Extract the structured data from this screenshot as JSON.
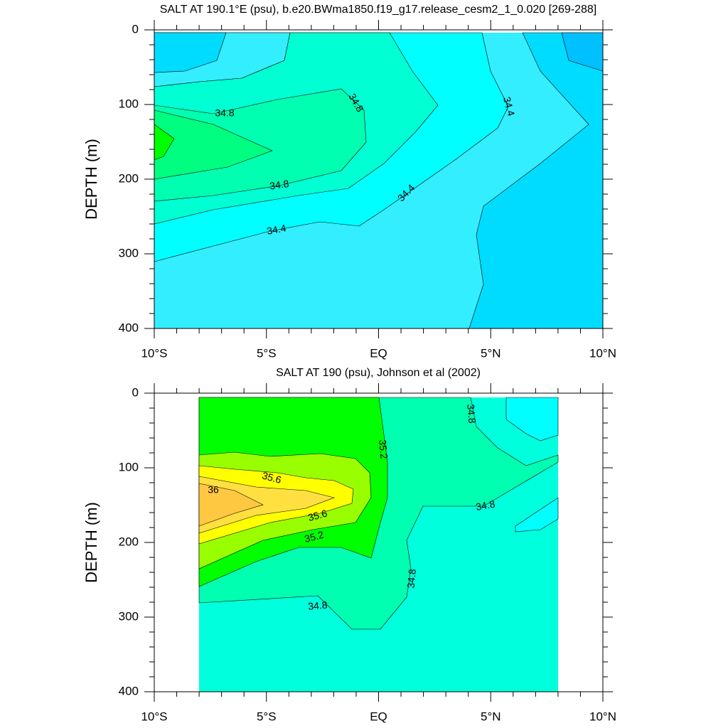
{
  "chart_data": [
    {
      "type": "contour",
      "title": "SALT AT 190.1°E (psu), b.e20.BWma1850.f19_g17.release_cesm2_1_0.020 [269-288]",
      "ylabel": "DEPTH (m)",
      "xlim": [
        -10,
        10
      ],
      "xticks": [
        {
          "value": -10,
          "label": "10°S"
        },
        {
          "value": -5,
          "label": "5°S"
        },
        {
          "value": 0,
          "label": "EQ"
        },
        {
          "value": 5,
          "label": "5°N"
        },
        {
          "value": 10,
          "label": "10°N"
        }
      ],
      "xminorticks": [
        -9,
        -8,
        -7,
        -6,
        -4,
        -3,
        -2,
        -1,
        1,
        2,
        3,
        4,
        6,
        7,
        8,
        9
      ],
      "ylim": [
        400,
        0
      ],
      "yticks": [
        0,
        100,
        200,
        300,
        400
      ],
      "yminorticks": [
        20,
        40,
        60,
        80,
        120,
        140,
        160,
        180,
        220,
        240,
        260,
        280,
        320,
        340,
        360,
        380
      ],
      "contour_labels": [
        34.8,
        34.8,
        34.4,
        34.8,
        34.4,
        34.4
      ]
    },
    {
      "type": "contour",
      "title": "SALT AT 190 (psu), Johnson et al (2002)",
      "ylabel": "DEPTH (m)",
      "xlim": [
        -10,
        10
      ],
      "xticks": [
        {
          "value": -10,
          "label": "10°S"
        },
        {
          "value": -5,
          "label": "5°S"
        },
        {
          "value": 0,
          "label": "EQ"
        },
        {
          "value": 5,
          "label": "5°N"
        },
        {
          "value": 10,
          "label": "10°N"
        }
      ],
      "xminorticks": [
        -9,
        -8,
        -7,
        -6,
        -4,
        -3,
        -2,
        -1,
        1,
        2,
        3,
        4,
        6,
        7,
        8,
        9
      ],
      "ylim": [
        400,
        0
      ],
      "yticks": [
        0,
        100,
        200,
        300,
        400
      ],
      "yminorticks": [
        20,
        40,
        60,
        80,
        120,
        140,
        160,
        180,
        220,
        240,
        260,
        280,
        320,
        340,
        360,
        380
      ],
      "contour_labels": [
        34.8,
        35.2,
        35.6,
        36,
        35.6,
        35.2,
        34.8,
        34.8,
        34.8
      ]
    }
  ]
}
